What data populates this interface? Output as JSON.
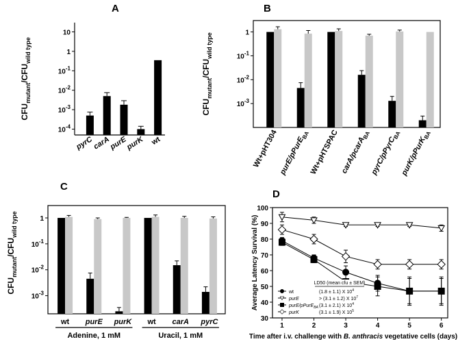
{
  "chart_data": [
    {
      "panel": "A",
      "type": "bar",
      "scale": "log",
      "ylim": [
        5e-05,
        30
      ],
      "yticks": [
        {
          "v": 10,
          "b": "10",
          "e": ""
        },
        {
          "v": 1,
          "b": "1",
          "e": ""
        },
        {
          "v": 0.1,
          "b": "10",
          "e": "-1"
        },
        {
          "v": 0.01,
          "b": "10",
          "e": "-2"
        },
        {
          "v": 0.001,
          "b": "10",
          "e": "-3"
        },
        {
          "v": 0.0001,
          "b": "10",
          "e": "-4"
        }
      ],
      "ylabel": {
        "main": "CFU",
        "sub1": "mutant",
        "mid": "/CFU",
        "sub2": "wild type"
      },
      "categories": [
        "pyrC",
        "carA",
        "purE",
        "purK",
        "wt"
      ],
      "series": [
        {
          "color": "#000000",
          "values": [
            0.0005,
            0.005,
            0.0018,
            0.0001,
            0.35
          ],
          "errors": [
            0.00025,
            0.0025,
            0.0011,
            4e-05,
            0
          ]
        }
      ]
    },
    {
      "panel": "B",
      "type": "bar",
      "scale": "log",
      "ylim": [
        0.0001,
        3
      ],
      "yticks": [
        {
          "v": 1,
          "b": "1",
          "e": ""
        },
        {
          "v": 0.1,
          "b": "10",
          "e": "-1"
        },
        {
          "v": 0.01,
          "b": "10",
          "e": "-2"
        },
        {
          "v": 0.001,
          "b": "10",
          "e": "-3"
        }
      ],
      "ylabel": {
        "main": "CFU",
        "sub1": "mutant",
        "mid": "/CFU",
        "sub2": "wild type"
      },
      "categories": [
        {
          "text": "Wt+pHT304",
          "sub": ""
        },
        {
          "text": "purE/pPurE",
          "sub": "BA"
        },
        {
          "text": "Wt+pHTSPAC",
          "sub": ""
        },
        {
          "text": "carA/pcarA",
          "sub": "BA"
        },
        {
          "text": "pyrC/pPyrC",
          "sub": "BA"
        },
        {
          "text": "purK/pPurK",
          "sub": "BA"
        }
      ],
      "series": [
        {
          "color": "#000000",
          "values": [
            1,
            0.0045,
            1,
            0.016,
            0.0013,
            0.0002
          ],
          "errors": [
            0,
            0.003,
            0,
            0.008,
            0.0007,
            0.0001
          ]
        },
        {
          "color": "#c8c8c8",
          "values": [
            1.3,
            0.85,
            1.1,
            0.7,
            1.05,
            1.0
          ],
          "errors": [
            0.35,
            0.3,
            0.25,
            0.1,
            0.15,
            0
          ]
        }
      ]
    },
    {
      "panel": "C",
      "type": "bar",
      "scale": "log",
      "ylim": [
        0.0002,
        3
      ],
      "yticks": [
        {
          "v": 1,
          "b": "1",
          "e": ""
        },
        {
          "v": 0.1,
          "b": "10",
          "e": "-1"
        },
        {
          "v": 0.01,
          "b": "10",
          "e": "-2"
        },
        {
          "v": 0.001,
          "b": "10",
          "e": "-3"
        }
      ],
      "ylabel": {
        "main": "CFU",
        "sub1": "mutant",
        "mid": "/CFU",
        "sub2": "wild type"
      },
      "categories": [
        "wt",
        "purE",
        "purK",
        "wt",
        "carA",
        "pyrC"
      ],
      "groups": [
        {
          "label": "Adenine, 1 mM",
          "span": [
            0,
            2
          ]
        },
        {
          "label": "Uracil, 1 mM",
          "span": [
            3,
            5
          ]
        }
      ],
      "series": [
        {
          "color": "#000000",
          "values": [
            1,
            0.0045,
            0.00025,
            1,
            0.015,
            0.0014
          ],
          "errors": [
            0,
            0.003,
            0.0001,
            0,
            0.007,
            0.0008
          ]
        },
        {
          "color": "#c8c8c8",
          "values": [
            1.1,
            0.9,
            1.0,
            1.1,
            1.0,
            0.95
          ],
          "errors": [
            0.15,
            0.1,
            0.05,
            0.2,
            0.15,
            0.15
          ]
        }
      ]
    },
    {
      "panel": "D",
      "type": "line",
      "xlabel": {
        "pre": "Time after i.v. challenge with ",
        "ital": "B. anthracis",
        "post": " vegetative cells (days)"
      },
      "ylabel": "Average Latency Survival (%)",
      "xlim": [
        0.7,
        6.2
      ],
      "ylim": [
        30,
        100
      ],
      "xticks": [
        1,
        2,
        3,
        4,
        5,
        6
      ],
      "yticks": [
        30,
        40,
        50,
        60,
        70,
        80,
        90,
        100
      ],
      "x": [
        1,
        2,
        3,
        4,
        5,
        6
      ],
      "legend_header": "LD50 (mean cfu ± SEM)",
      "series": [
        {
          "name": "wt",
          "sub": "",
          "marker": "circle",
          "fill": "#000000",
          "ld50": "(1.8 ± 1.1) X 10",
          "ld50_exp": "4",
          "values": [
            79,
            68,
            59,
            52,
            47,
            47
          ],
          "errors": [
            2,
            2,
            4,
            5,
            8,
            8
          ]
        },
        {
          "name": "purE",
          "sub": "",
          "marker": "triangle-down",
          "fill": "#ffffff",
          "ld50": "> (3.1 ± 1.2) X 10",
          "ld50_exp": "7",
          "values": [
            94,
            92,
            89,
            89,
            89,
            87
          ],
          "errors": [
            3,
            2,
            1,
            1,
            1,
            2
          ]
        },
        {
          "name": "purE/pPurE",
          "sub": "BA",
          "marker": "square",
          "fill": "#000000",
          "ld50": "(3.1 ± 2.1) X 10",
          "ld50_exp": "4",
          "values": [
            78,
            67,
            53,
            50,
            47,
            47
          ],
          "errors": [
            2,
            2,
            2,
            6,
            9,
            9
          ]
        },
        {
          "name": "purK",
          "sub": "",
          "marker": "diamond",
          "fill": "#ffffff",
          "ld50": "(3.1 ± 1.9) X 10",
          "ld50_exp": "5",
          "values": [
            86,
            80,
            69,
            64,
            64,
            64
          ],
          "errors": [
            3,
            3,
            4,
            3,
            3,
            3
          ]
        }
      ]
    }
  ]
}
